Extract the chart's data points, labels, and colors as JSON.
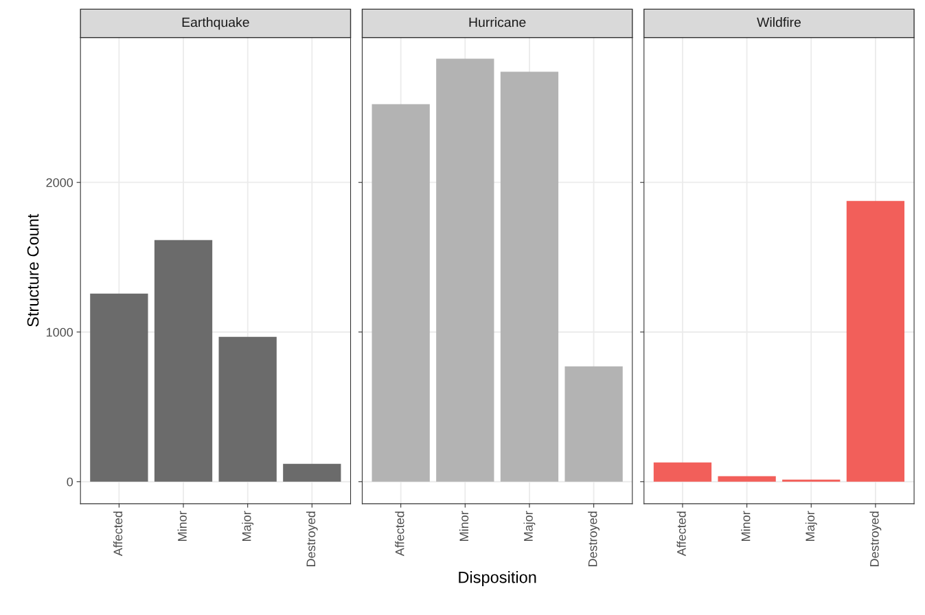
{
  "chart_data": [
    {
      "type": "bar",
      "title": "Earthquake",
      "ylabel": "Structure Count",
      "categories": [
        "Affected",
        "Minor",
        "Major",
        "Destroyed"
      ],
      "values": [
        1257,
        1615,
        968,
        119
      ],
      "color": "#6b6b6b",
      "ylim": [
        -147,
        2968
      ],
      "yticks": [
        0,
        1000,
        2000
      ],
      "grid": true
    },
    {
      "type": "bar",
      "title": "Hurricane",
      "xlabel": "Disposition",
      "categories": [
        "Affected",
        "Minor",
        "Major",
        "Destroyed"
      ],
      "values": [
        2523,
        2826,
        2739,
        771
      ],
      "color": "#b3b3b3",
      "ylim": [
        -147,
        2968
      ],
      "yticks": [
        0,
        1000,
        2000
      ],
      "grid": true,
      "tick_labels": "x"
    },
    {
      "type": "bar",
      "title": "Wildfire",
      "categories": [
        "Affected",
        "Minor",
        "Major",
        "Destroyed"
      ],
      "values": [
        128,
        37,
        14,
        1876
      ],
      "color": "#f25f5a",
      "ylim": [
        -147,
        2968
      ],
      "yticks": [
        0,
        1000,
        2000
      ],
      "grid": true,
      "tick_labels": "x"
    }
  ]
}
